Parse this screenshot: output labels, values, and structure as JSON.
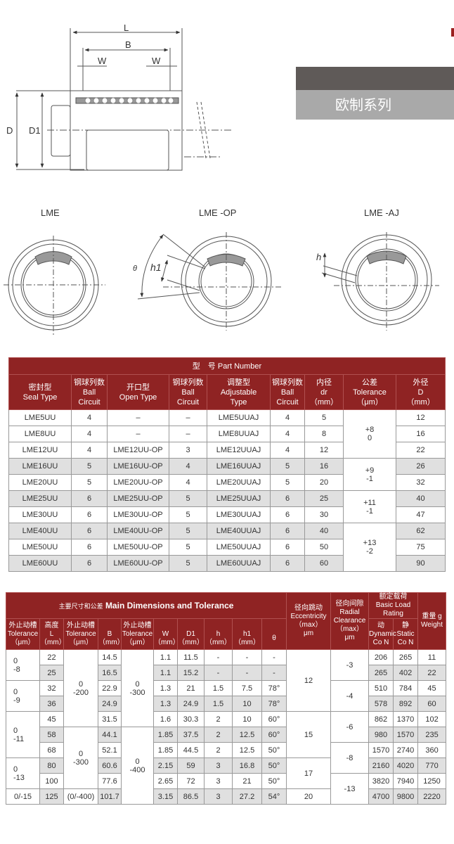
{
  "banner": {
    "title": "欧制系列",
    "colors": {
      "dark": "#5f5a58",
      "light": "#a9a9a9",
      "accent": "#8f2323"
    }
  },
  "drawing": {
    "L": "L",
    "B": "B",
    "W1": "W",
    "W2": "W",
    "D": "D",
    "D1": "D1"
  },
  "sections": [
    {
      "label": "LME"
    },
    {
      "label": "LME   -OP",
      "theta": "θ",
      "h1": "h1"
    },
    {
      "label": "LME   -AJ",
      "h": "h"
    }
  ],
  "table1": {
    "title": "型　号 Part Number",
    "headers": [
      [
        "密封型",
        "Seal Type"
      ],
      [
        "钢球列数",
        "Ball",
        "Circuit"
      ],
      [
        "开口型",
        "Open Type"
      ],
      [
        "钢球列数",
        "Ball",
        "Circuit"
      ],
      [
        "调整型",
        "Adjustable",
        "Type"
      ],
      [
        "钢球列数",
        "Ball",
        "Circuit"
      ],
      [
        "内径",
        "dr",
        "（mm）"
      ],
      [
        "公差",
        "Tolerance",
        "（μm）"
      ],
      [
        "外径",
        "D",
        "（mm）"
      ]
    ],
    "rows": [
      [
        "LME5UU",
        "4",
        "–",
        "–",
        "LME5UUAJ",
        "4",
        "5",
        "12"
      ],
      [
        "LME8UU",
        "4",
        "–",
        "–",
        "LME8UUAJ",
        "4",
        "8",
        "16"
      ],
      [
        "LME12UU",
        "4",
        "LME12UU-OP",
        "3",
        "LME12UUAJ",
        "4",
        "12",
        "22"
      ],
      [
        "LME16UU",
        "5",
        "LME16UU-OP",
        "4",
        "LME16UUAJ",
        "5",
        "16",
        "26"
      ],
      [
        "LME20UU",
        "5",
        "LME20UU-OP",
        "4",
        "LME20UUAJ",
        "5",
        "20",
        "32"
      ],
      [
        "LME25UU",
        "6",
        "LME25UU-OP",
        "5",
        "LME25UUAJ",
        "6",
        "25",
        "40"
      ],
      [
        "LME30UU",
        "6",
        "LME30UU-OP",
        "5",
        "LME30UUAJ",
        "6",
        "30",
        "47"
      ],
      [
        "LME40UU",
        "6",
        "LME40UU-OP",
        "5",
        "LME40UUAJ",
        "6",
        "40",
        "62"
      ],
      [
        "LME50UU",
        "6",
        "LME50UU-OP",
        "5",
        "LME50UUAJ",
        "6",
        "50",
        "75"
      ],
      [
        "LME60UU",
        "6",
        "LME60UU-OP",
        "5",
        "LME60UUAJ",
        "6",
        "60",
        "90"
      ]
    ],
    "tolerance": [
      {
        "text": [
          "+8",
          "0"
        ],
        "rows": 3
      },
      {
        "text": [
          "+9",
          "-1"
        ],
        "rows": 2
      },
      {
        "text": [
          "+11",
          "-1"
        ],
        "rows": 2
      },
      {
        "text": [
          "+13",
          "-2"
        ],
        "rows": 3
      }
    ],
    "shaded_rows": [
      3,
      5,
      7,
      9
    ]
  },
  "table2": {
    "title_cn": "主要尺寸和公差",
    "title_en": "Main Dimensions and Tolerance",
    "headers": [
      [
        "外止动槽",
        "Tolerance",
        "（μm）"
      ],
      [
        "高度",
        "L",
        "（mm）"
      ],
      [
        "外止动槽",
        "Tolerance",
        "（μm）"
      ],
      [
        "",
        "B",
        "（mm）"
      ],
      [
        "外止动槽",
        "Tolerance",
        "（μm）"
      ],
      [
        "",
        "W",
        "（mm）"
      ],
      [
        "",
        "D1",
        "（mm）"
      ],
      [
        "",
        "h",
        "（mm）"
      ],
      [
        "",
        "h1",
        "（mm）"
      ],
      [
        "",
        "θ",
        ""
      ]
    ],
    "eccentricity": [
      "径向跳动",
      "Eccentricity",
      "（max）",
      "μm"
    ],
    "radial": [
      "径向间隙",
      "Radial",
      "Clearance",
      "（max）",
      "μm"
    ],
    "load": [
      "额定载荷",
      "Basic Load",
      "Rating"
    ],
    "dynamic": [
      "动",
      "Dynamic",
      "Co  N"
    ],
    "static": [
      "静",
      "Static",
      "Co  N"
    ],
    "weight": [
      "重量 g",
      "Weight"
    ],
    "rows": [
      {
        "L": "22",
        "B": "14.5",
        "W": "1.1",
        "D1": "11.5",
        "h": "-",
        "h1": "-",
        "theta": "-",
        "dyn": "206",
        "sta": "265",
        "wt": "11"
      },
      {
        "L": "25",
        "B": "16.5",
        "W": "1.1",
        "D1": "15.2",
        "h": "-",
        "h1": "-",
        "theta": "-",
        "dyn": "265",
        "sta": "402",
        "wt": "22"
      },
      {
        "L": "32",
        "B": "22.9",
        "W": "1.3",
        "D1": "21",
        "h": "1.5",
        "h1": "7.5",
        "theta": "78°",
        "dyn": "510",
        "sta": "784",
        "wt": "45"
      },
      {
        "L": "36",
        "B": "24.9",
        "W": "1.3",
        "D1": "24.9",
        "h": "1.5",
        "h1": "10",
        "theta": "78°",
        "dyn": "578",
        "sta": "892",
        "wt": "60"
      },
      {
        "L": "45",
        "B": "31.5",
        "W": "1.6",
        "D1": "30.3",
        "h": "2",
        "h1": "10",
        "theta": "60°",
        "dyn": "862",
        "sta": "1370",
        "wt": "102"
      },
      {
        "L": "58",
        "B": "44.1",
        "W": "1.85",
        "D1": "37.5",
        "h": "2",
        "h1": "12.5",
        "theta": "60°",
        "dyn": "980",
        "sta": "1570",
        "wt": "235"
      },
      {
        "L": "68",
        "B": "52.1",
        "W": "1.85",
        "D1": "44.5",
        "h": "2",
        "h1": "12.5",
        "theta": "50°",
        "dyn": "1570",
        "sta": "2740",
        "wt": "360"
      },
      {
        "L": "80",
        "B": "60.6",
        "W": "2.15",
        "D1": "59",
        "h": "3",
        "h1": "16.8",
        "theta": "50°",
        "dyn": "2160",
        "sta": "4020",
        "wt": "770"
      },
      {
        "L": "100",
        "B": "77.6",
        "W": "2.65",
        "D1": "72",
        "h": "3",
        "h1": "21",
        "theta": "50°",
        "dyn": "3820",
        "sta": "7940",
        "wt": "1250"
      },
      {
        "L": "125",
        "B": "101.7",
        "W": "3.15",
        "D1": "86.5",
        "h": "3",
        "h1": "27.2",
        "theta": "54°",
        "dyn": "4700",
        "sta": "9800",
        "wt": "2220"
      }
    ],
    "tol_outer": [
      {
        "text": [
          "0",
          "-8"
        ],
        "rows": 2
      },
      {
        "text": [
          "0",
          "-9"
        ],
        "rows": 2
      },
      {
        "text": [
          "0",
          "-11"
        ],
        "rows": 3
      },
      {
        "text": [
          "0",
          "-13"
        ],
        "rows": 2
      },
      {
        "text": [
          "0/-15"
        ],
        "rows": 1
      }
    ],
    "tol_B": [
      {
        "text": [
          "0",
          "-200"
        ],
        "rows": 5
      },
      {
        "text": [
          "0",
          "-300"
        ],
        "rows": 4
      },
      {
        "text": [
          "(0/-400)"
        ],
        "rows": 1
      }
    ],
    "tol_W": [
      {
        "text": [
          "0",
          "-300"
        ],
        "rows": 5
      },
      {
        "text": [
          "0",
          "-400"
        ],
        "rows": 5
      }
    ],
    "ecc": [
      {
        "text": [
          "12"
        ],
        "rows": 4
      },
      {
        "text": [
          "15"
        ],
        "rows": 3
      },
      {
        "text": [
          "17"
        ],
        "rows": 2
      },
      {
        "text": [
          "20"
        ],
        "rows": 1
      }
    ],
    "clearance": [
      {
        "text": [
          "-3"
        ],
        "rows": 2
      },
      {
        "text": [
          "-4"
        ],
        "rows": 2
      },
      {
        "text": [
          "-6"
        ],
        "rows": 2
      },
      {
        "text": [
          "-8"
        ],
        "rows": 2
      },
      {
        "text": [
          "-13"
        ],
        "rows": 2
      }
    ]
  }
}
